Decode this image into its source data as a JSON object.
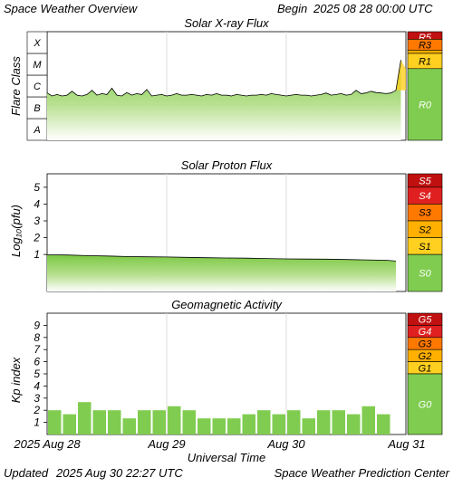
{
  "header": {
    "app_title": "Space Weather Overview",
    "begin_label": "Begin",
    "begin_value": "2025 08 28 00:00 UTC"
  },
  "footer": {
    "updated_label": "Updated",
    "updated_value": "2025 Aug 30 22:27 UTC",
    "source": "Space Weather Prediction Center"
  },
  "x_axis": {
    "label": "Universal Time",
    "ticks": [
      "2025 Aug 28",
      "Aug 29",
      "Aug 30",
      "Aug 31"
    ]
  },
  "chart_data": [
    {
      "type": "area",
      "title": "Solar X-ray Flux",
      "ylabel": "Flare Class",
      "y_scale": "log",
      "flare_classes": [
        "A",
        "B",
        "C",
        "M",
        "X"
      ],
      "x_start": "2025-08-28 00:00",
      "x_end": "2025-08-31 00:00",
      "x_hours": [
        0,
        1,
        2,
        3,
        4,
        5,
        6,
        7,
        8,
        9,
        10,
        11,
        12,
        13,
        14,
        15,
        16,
        17,
        18,
        19,
        20,
        21,
        22,
        23,
        24,
        25,
        26,
        27,
        28,
        29,
        30,
        31,
        32,
        33,
        34,
        35,
        36,
        37,
        38,
        39,
        40,
        41,
        42,
        43,
        44,
        45,
        46,
        47,
        48,
        49,
        50,
        51,
        52,
        53,
        54,
        55,
        56,
        57,
        58,
        59,
        60,
        61,
        62,
        63,
        64,
        65,
        66,
        67,
        68,
        69,
        70,
        71
      ],
      "values_class": [
        "C1.5",
        "C1.1",
        "C1.3",
        "C1.1",
        "C1.2",
        "C1.8",
        "C1.2",
        "C1.1",
        "C1.3",
        "C2.0",
        "C1.2",
        "C1.4",
        "C1.3",
        "C2.5",
        "C1.2",
        "C1.1",
        "C1.6",
        "C1.2",
        "C1.4",
        "C1.3",
        "C2.2",
        "C1.1",
        "C1.2",
        "C1.3",
        "C1.1",
        "C1.2",
        "C1.4",
        "C1.2",
        "C1.2",
        "C1.3",
        "C1.2",
        "C1.1",
        "C1.3",
        "C1.2",
        "C1.4",
        "C1.2",
        "C1.2",
        "C1.1",
        "C1.3",
        "C1.2",
        "C1.1",
        "C1.2",
        "C1.2",
        "C1.3",
        "C1.2",
        "C1.4",
        "C1.3",
        "C1.2",
        "C1.1",
        "C1.2",
        "C1.3",
        "C1.2",
        "C1.2",
        "C1.1",
        "C1.2",
        "C1.3",
        "C1.5",
        "C1.2",
        "C1.3",
        "C1.4",
        "C1.2",
        "C1.3",
        "C2.0",
        "C1.4",
        "C1.5",
        "C1.8",
        "C1.6",
        "C1.5",
        "C1.4",
        "C1.5",
        "C2.0",
        "M5.0"
      ],
      "values_log10_wm2": [
        -5.82,
        -5.96,
        -5.89,
        -5.96,
        -5.92,
        -5.74,
        -5.92,
        -5.96,
        -5.89,
        -5.7,
        -5.92,
        -5.85,
        -5.89,
        -5.6,
        -5.92,
        -5.96,
        -5.8,
        -5.92,
        -5.85,
        -5.89,
        -5.66,
        -5.96,
        -5.92,
        -5.89,
        -5.96,
        -5.92,
        -5.85,
        -5.92,
        -5.92,
        -5.89,
        -5.92,
        -5.96,
        -5.89,
        -5.92,
        -5.85,
        -5.92,
        -5.92,
        -5.96,
        -5.89,
        -5.92,
        -5.96,
        -5.92,
        -5.92,
        -5.89,
        -5.92,
        -5.85,
        -5.89,
        -5.92,
        -5.96,
        -5.92,
        -5.89,
        -5.92,
        -5.92,
        -5.96,
        -5.92,
        -5.89,
        -5.82,
        -5.92,
        -5.89,
        -5.85,
        -5.92,
        -5.89,
        -5.7,
        -5.85,
        -5.82,
        -5.74,
        -5.8,
        -5.82,
        -5.85,
        -5.82,
        -5.7,
        -4.3
      ],
      "ylim_log10_wm2": [
        -8.0,
        -3.0
      ],
      "scale_labels": [
        "R5",
        "R3",
        "R1",
        "R0"
      ],
      "scale_thresholds_log10_wm2": [
        -3.0,
        -3.7,
        -4.0,
        -4.7
      ]
    },
    {
      "type": "area",
      "title": "Solar Proton Flux",
      "ylabel": "Log₁₀(pfu)",
      "y_ticks": [
        1,
        2,
        3,
        4,
        5
      ],
      "ylim": [
        -1.2,
        5.8
      ],
      "x_start": "2025-08-28 00:00",
      "x_end": "2025-08-31 00:00",
      "x_hours": [
        0,
        4,
        8,
        12,
        16,
        20,
        24,
        28,
        32,
        36,
        40,
        44,
        48,
        52,
        56,
        60,
        64,
        68,
        70
      ],
      "values": [
        0.98,
        0.97,
        0.93,
        0.91,
        0.88,
        0.86,
        0.85,
        0.83,
        0.81,
        0.79,
        0.78,
        0.76,
        0.74,
        0.73,
        0.72,
        0.7,
        0.68,
        0.66,
        0.61
      ],
      "scale_labels": [
        "S5",
        "S4",
        "S3",
        "S2",
        "S1",
        "S0"
      ],
      "scale_thresholds": [
        5,
        4,
        3,
        2,
        1
      ]
    },
    {
      "type": "bar",
      "title": "Geomagnetic Activity",
      "ylabel": "Kp index",
      "y_ticks": [
        1,
        2,
        3,
        4,
        5,
        6,
        7,
        8,
        9
      ],
      "ylim": [
        0,
        10
      ],
      "x_start": "2025-08-28 00:00",
      "bar_width_hours": 3,
      "values": [
        2.0,
        1.67,
        2.67,
        2.0,
        2.0,
        1.33,
        2.0,
        2.0,
        2.33,
        2.0,
        1.33,
        1.33,
        1.33,
        1.67,
        2.0,
        1.67,
        2.0,
        1.33,
        2.0,
        2.0,
        1.67,
        2.33,
        1.67
      ],
      "scale_labels": [
        "G5",
        "G4",
        "G3",
        "G2",
        "G1",
        "G0"
      ],
      "scale_thresholds": [
        9,
        8,
        7,
        6,
        5
      ]
    }
  ],
  "colors": {
    "green": "#80cc50",
    "green_light": "#e9f5de",
    "yellow": "#ffd020",
    "orange_light": "#ffb000",
    "orange": "#ff7800",
    "red": "#e02020",
    "dark_red": "#c01010"
  }
}
